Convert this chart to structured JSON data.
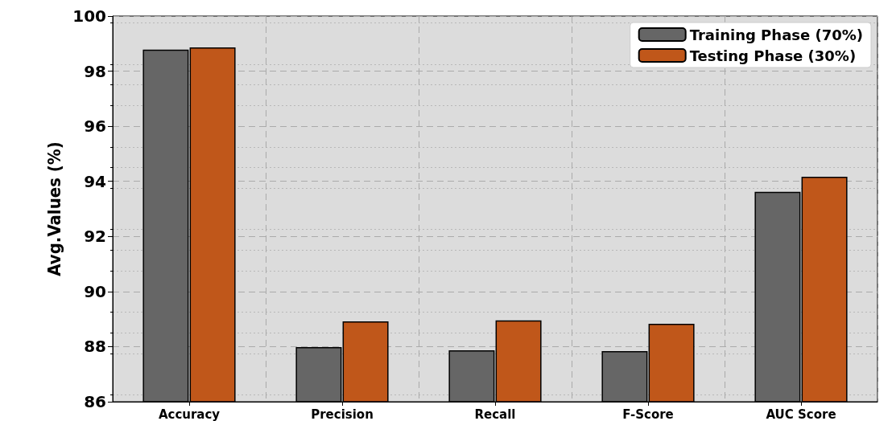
{
  "chart_data": {
    "type": "bar",
    "ylabel": "Avg.Values (%)",
    "categories": [
      "Accuracy",
      "Precision",
      "Recall",
      "F-Score",
      "AUC Score"
    ],
    "series": [
      {
        "name": "Training Phase (70%)",
        "color": "#666666",
        "values": [
          98.78,
          87.98,
          87.87,
          87.84,
          93.62
        ]
      },
      {
        "name": "Testing Phase (30%)",
        "color": "#c0571a",
        "values": [
          98.86,
          88.92,
          88.95,
          88.83,
          94.17
        ]
      }
    ],
    "ylim": [
      86,
      100
    ],
    "yticks": [
      86,
      88,
      90,
      92,
      94,
      96,
      98,
      100
    ],
    "grid": true,
    "legend": "top right"
  }
}
